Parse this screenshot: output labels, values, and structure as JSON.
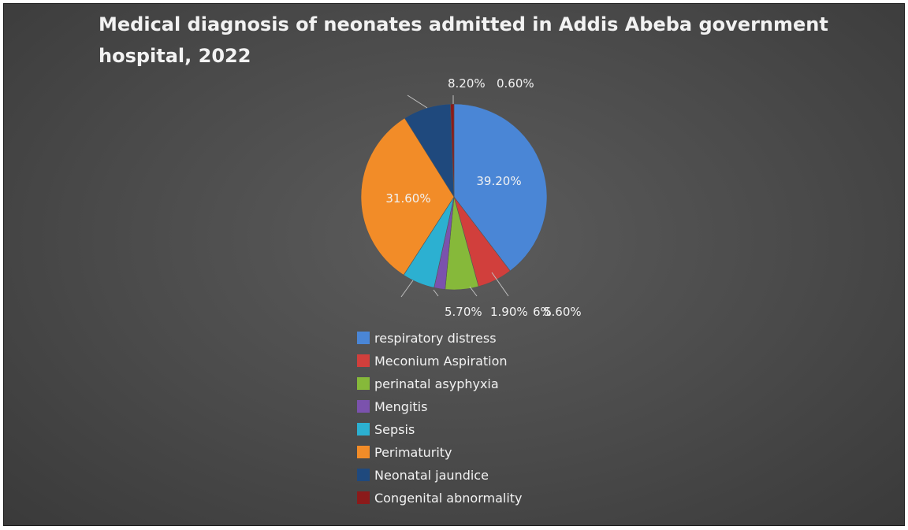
{
  "chart_data": {
    "type": "pie",
    "title": "Medical diagnosis of neonates admitted in Addis Abeba government hospital, 2022",
    "legend_position": "bottom",
    "slices": [
      {
        "name": "respiratory distress",
        "value": 39.2,
        "label": "39.20%",
        "color": "#4a86d6"
      },
      {
        "name": "Meconium Aspiration",
        "value": 6,
        "label": "6%",
        "color": "#d13f3c"
      },
      {
        "name": "perinatal asyphyxia",
        "value": 5.7,
        "label": "5.70%",
        "color": "#86b93a"
      },
      {
        "name": "Mengitis",
        "value": 1.9,
        "label": "1.90%",
        "color": "#7b52ad"
      },
      {
        "name": "Sepsis",
        "value": 5.6,
        "label": "5.60%",
        "color": "#2cb0d1"
      },
      {
        "name": "Perimaturity",
        "value": 31.6,
        "label": "31.60%",
        "color": "#f28c28"
      },
      {
        "name": "Neonatal jaundice",
        "value": 8.2,
        "label": "8.20%",
        "color": "#1f497d"
      },
      {
        "name": "Congenital abnormality",
        "value": 0.6,
        "label": "0.60%",
        "color": "#8b1a1a"
      }
    ]
  }
}
